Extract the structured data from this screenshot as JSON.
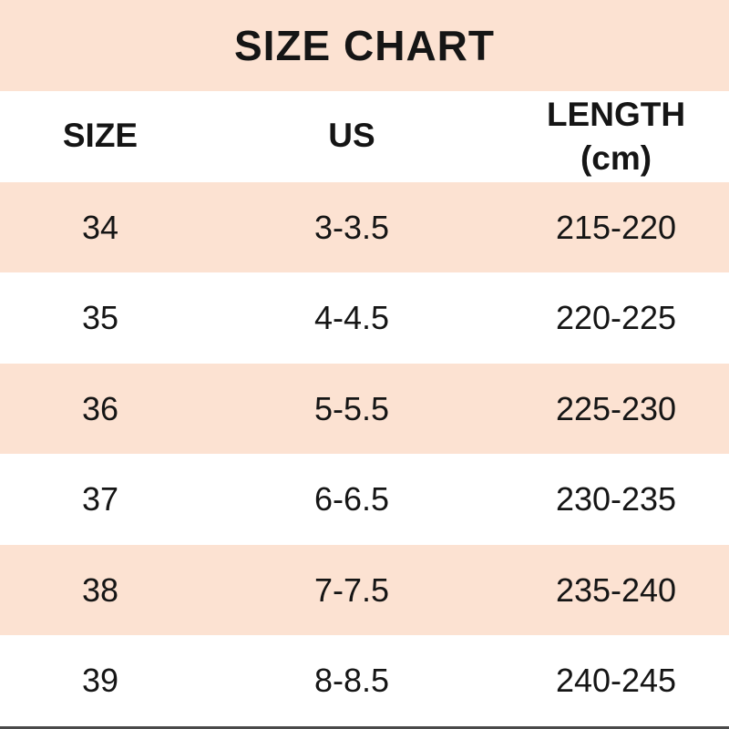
{
  "title": "SIZE CHART",
  "header": {
    "size": "SIZE",
    "us": "US",
    "length_line1": "LENGTH",
    "length_line2": "(cm)"
  },
  "colors": {
    "band_peach": "#fce2d2",
    "row_white": "#ffffff",
    "text_color": "#151515",
    "bottom_line": "#4a4a4a"
  },
  "chart_data": {
    "type": "table",
    "title": "SIZE CHART",
    "columns": [
      "SIZE",
      "US",
      "LENGTH (cm)"
    ],
    "rows": [
      [
        "34",
        "3-3.5",
        "215-220"
      ],
      [
        "35",
        "4-4.5",
        "220-225"
      ],
      [
        "36",
        "5-5.5",
        "225-230"
      ],
      [
        "37",
        "6-6.5",
        "230-235"
      ],
      [
        "38",
        "7-7.5",
        "235-240"
      ],
      [
        "39",
        "8-8.5",
        "240-245"
      ]
    ],
    "layout": {
      "row_striping": "alternating peach/white starting peach",
      "alignment": "center",
      "gridlines": false
    }
  }
}
